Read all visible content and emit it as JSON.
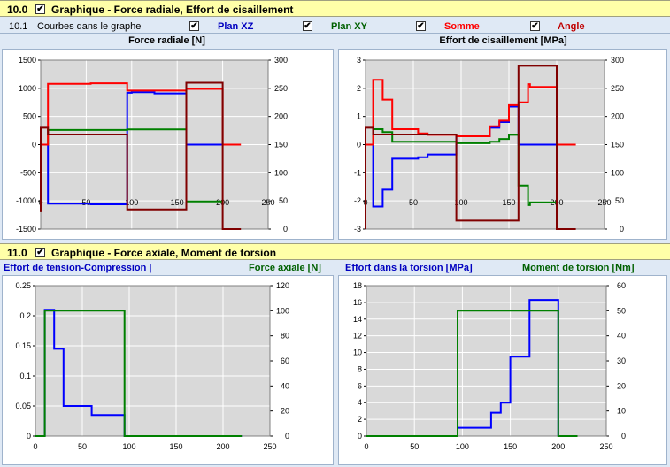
{
  "section10": {
    "number": "10.0",
    "title": "Graphique - Force radiale, Effort de cisaillement",
    "sub_number": "10.1",
    "sub_label": "Courbes dans le graphe",
    "plan_xz": "Plan XZ",
    "plan_xy": "Plan XY",
    "somme": "Somme",
    "angle": "Angle",
    "check_mark": "✔"
  },
  "section11": {
    "number": "11.0",
    "title": "Graphique - Force axiale,  Moment de torsion"
  },
  "titles": {
    "c1": "Force radiale [N]",
    "c2": "Effort de cisaillement [MPa]",
    "c3_left": "Effort de tension-Compression |",
    "c3_right": "Force axiale [N]",
    "c4_left": "Effort dans la torsion [MPa]",
    "c4_right": "Moment de torsion [Nm]"
  },
  "colors": {
    "blue": "#0000ff",
    "green": "#008000",
    "red": "#ff0000",
    "darkred": "#800000",
    "plot_bg": "#d9d9d9",
    "grid": "#ffffff"
  },
  "chart_data": [
    {
      "type": "line",
      "title": "Force radiale [N]",
      "xlim": [
        0,
        250
      ],
      "xticks": [
        0,
        50,
        100,
        150,
        200,
        250
      ],
      "ylim": [
        -1500,
        1500
      ],
      "yticks": [
        -1500,
        -1000,
        -500,
        0,
        500,
        1000,
        1500
      ],
      "y2lim": [
        0,
        300
      ],
      "y2ticks": [
        0,
        50,
        100,
        150,
        200,
        250,
        300
      ],
      "series": [
        {
          "color": "#0000ff",
          "axis": "left",
          "x": [
            0,
            8,
            8,
            55,
            55,
            95,
            95,
            100,
            100,
            125,
            125,
            160,
            160,
            200
          ],
          "y": [
            0,
            0,
            -1050,
            -1050,
            -1060,
            -1060,
            920,
            920,
            930,
            930,
            910,
            910,
            0,
            0
          ]
        },
        {
          "color": "#008000",
          "axis": "left",
          "x": [
            0,
            8,
            8,
            95,
            95,
            160,
            160,
            200
          ],
          "y": [
            0,
            0,
            260,
            260,
            270,
            270,
            -1010,
            -1010
          ]
        },
        {
          "color": "#ff0000",
          "axis": "left",
          "x": [
            0,
            8,
            8,
            55,
            55,
            95,
            95,
            160,
            160,
            200,
            200,
            220
          ],
          "y": [
            0,
            0,
            1080,
            1080,
            1090,
            1090,
            960,
            960,
            990,
            990,
            0,
            0
          ]
        },
        {
          "color": "#800000",
          "axis": "right",
          "x": [
            0,
            0,
            8,
            8,
            95,
            95,
            160,
            160,
            200,
            200,
            220
          ],
          "y": [
            30,
            180,
            180,
            168,
            168,
            35,
            35,
            260,
            260,
            0,
            0
          ]
        }
      ]
    },
    {
      "type": "line",
      "title": "Effort de cisaillement [MPa]",
      "xlim": [
        0,
        250
      ],
      "xticks": [
        0,
        50,
        100,
        150,
        200,
        250
      ],
      "ylim": [
        -3,
        3
      ],
      "yticks": [
        -3,
        -2,
        -1,
        0,
        1,
        2,
        3
      ],
      "y2lim": [
        0,
        300
      ],
      "y2ticks": [
        0,
        50,
        100,
        150,
        200,
        250,
        300
      ],
      "series": [
        {
          "color": "#0000ff",
          "axis": "left",
          "x": [
            0,
            8,
            8,
            18,
            18,
            28,
            28,
            55,
            55,
            65,
            65,
            95,
            95,
            130,
            130,
            140,
            140,
            150,
            150,
            160,
            160,
            200
          ],
          "y": [
            0,
            0,
            -2.2,
            -2.2,
            -1.6,
            -1.6,
            -0.5,
            -0.5,
            -0.45,
            -0.45,
            -0.35,
            -0.35,
            0.3,
            0.3,
            0.6,
            0.6,
            0.8,
            0.8,
            1.35,
            1.35,
            0,
            0
          ]
        },
        {
          "color": "#008000",
          "axis": "left",
          "x": [
            0,
            8,
            8,
            18,
            18,
            28,
            28,
            95,
            95,
            130,
            130,
            140,
            140,
            150,
            150,
            160,
            160,
            170,
            170,
            172,
            172,
            200
          ],
          "y": [
            0,
            0,
            0.55,
            0.55,
            0.45,
            0.45,
            0.1,
            0.1,
            0.05,
            0.05,
            0.1,
            0.1,
            0.2,
            0.2,
            0.35,
            0.35,
            -1.45,
            -1.45,
            -2.15,
            -2.15,
            -2.05,
            -2.05
          ]
        },
        {
          "color": "#ff0000",
          "axis": "left",
          "x": [
            0,
            8,
            8,
            18,
            18,
            28,
            28,
            55,
            55,
            65,
            65,
            95,
            95,
            130,
            130,
            140,
            140,
            150,
            150,
            160,
            160,
            170,
            170,
            172,
            172,
            200,
            200,
            220
          ],
          "y": [
            0,
            0,
            2.3,
            2.3,
            1.6,
            1.6,
            0.55,
            0.55,
            0.4,
            0.4,
            0.35,
            0.35,
            0.3,
            0.3,
            0.65,
            0.65,
            0.85,
            0.85,
            1.4,
            1.4,
            1.5,
            1.5,
            2.15,
            2.15,
            2.05,
            2.05,
            0,
            0
          ]
        },
        {
          "color": "#800000",
          "axis": "right",
          "x": [
            0,
            0,
            8,
            8,
            95,
            95,
            160,
            160,
            200,
            200,
            220
          ],
          "y": [
            0,
            180,
            180,
            168,
            168,
            15,
            15,
            290,
            290,
            0,
            0
          ]
        }
      ]
    },
    {
      "type": "line",
      "title": "Effort de tension-Compression |",
      "xlim": [
        0,
        250
      ],
      "xticks": [
        0,
        50,
        100,
        150,
        200,
        250
      ],
      "ylim": [
        0,
        0.25
      ],
      "yticks": [
        0,
        0.05,
        0.1,
        0.15,
        0.2,
        0.25
      ],
      "y2lim": [
        0,
        120
      ],
      "y2ticks": [
        0,
        20,
        40,
        60,
        80,
        100,
        120
      ],
      "series": [
        {
          "color": "#0000ff",
          "axis": "left",
          "x": [
            10,
            10,
            20,
            20,
            30,
            30,
            60,
            60,
            95,
            95,
            220
          ],
          "y": [
            0,
            0.21,
            0.21,
            0.145,
            0.145,
            0.05,
            0.05,
            0.035,
            0.035,
            0,
            0
          ]
        },
        {
          "color": "#008000",
          "axis": "right",
          "x": [
            0,
            10,
            10,
            95,
            95,
            220
          ],
          "y": [
            0,
            0,
            100,
            100,
            0,
            0
          ]
        }
      ]
    },
    {
      "type": "line",
      "title": "Effort dans la torsion [MPa]",
      "xlim": [
        0,
        250
      ],
      "xticks": [
        0,
        50,
        100,
        150,
        200,
        250
      ],
      "ylim": [
        0,
        18
      ],
      "yticks": [
        0,
        2,
        4,
        6,
        8,
        10,
        12,
        14,
        16,
        18
      ],
      "y2lim": [
        0,
        60
      ],
      "y2ticks": [
        0,
        10,
        20,
        30,
        40,
        50,
        60
      ],
      "series": [
        {
          "color": "#0000ff",
          "axis": "left",
          "x": [
            95,
            95,
            130,
            130,
            140,
            140,
            150,
            150,
            170,
            170,
            200,
            200
          ],
          "y": [
            0,
            1,
            1,
            2.8,
            2.8,
            4,
            4,
            9.5,
            9.5,
            16.3,
            16.3,
            0
          ]
        },
        {
          "color": "#008000",
          "axis": "right",
          "x": [
            0,
            95,
            95,
            200,
            200,
            220
          ],
          "y": [
            0,
            0,
            50,
            50,
            0,
            0
          ]
        }
      ]
    }
  ]
}
